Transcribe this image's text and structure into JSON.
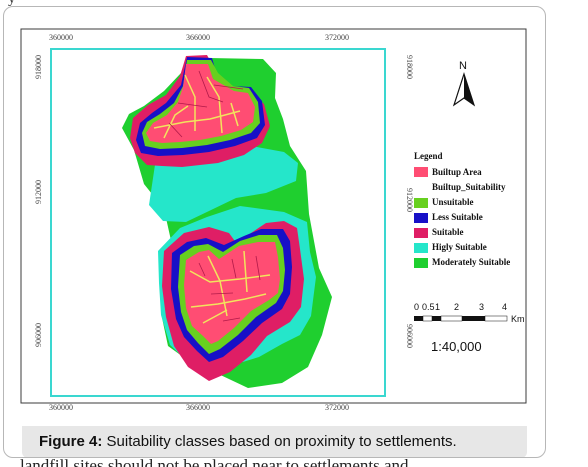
{
  "page": {
    "top_text": "y",
    "bottom_text": "landfill sites should not be placed near to settlements and"
  },
  "map": {
    "top_coords": [
      "360000",
      "366000",
      "372000"
    ],
    "bottom_coords": [
      "360000",
      "366000",
      "372000"
    ],
    "left_coords": [
      "918000",
      "912000",
      "906000"
    ],
    "right_coords": [
      "918000",
      "912000",
      "906000"
    ],
    "north_label": "N",
    "legend": {
      "title": "Legend",
      "items": [
        {
          "label": "Builtup Area",
          "color": "#ff4d73"
        },
        {
          "label": "Builtup_Suitability",
          "color": ""
        },
        {
          "label": "Unsuitable",
          "color": "#67d01f"
        },
        {
          "label": "Less Suitable",
          "color": "#1710c7"
        },
        {
          "label": "Suitable",
          "color": "#df1e65"
        },
        {
          "label": "Higly Suitable",
          "color": "#25e6ca"
        },
        {
          "label": "Moderately Suitable",
          "color": "#1fcf2f"
        }
      ]
    },
    "scale": {
      "ticks": [
        "0",
        "0.5",
        "1",
        "2",
        "3",
        "4"
      ],
      "unit": "Km",
      "ratio": "1:40,000"
    }
  },
  "caption": {
    "label": "Figure 4:",
    "text": "Suitability classes based on proximity to settlements."
  }
}
